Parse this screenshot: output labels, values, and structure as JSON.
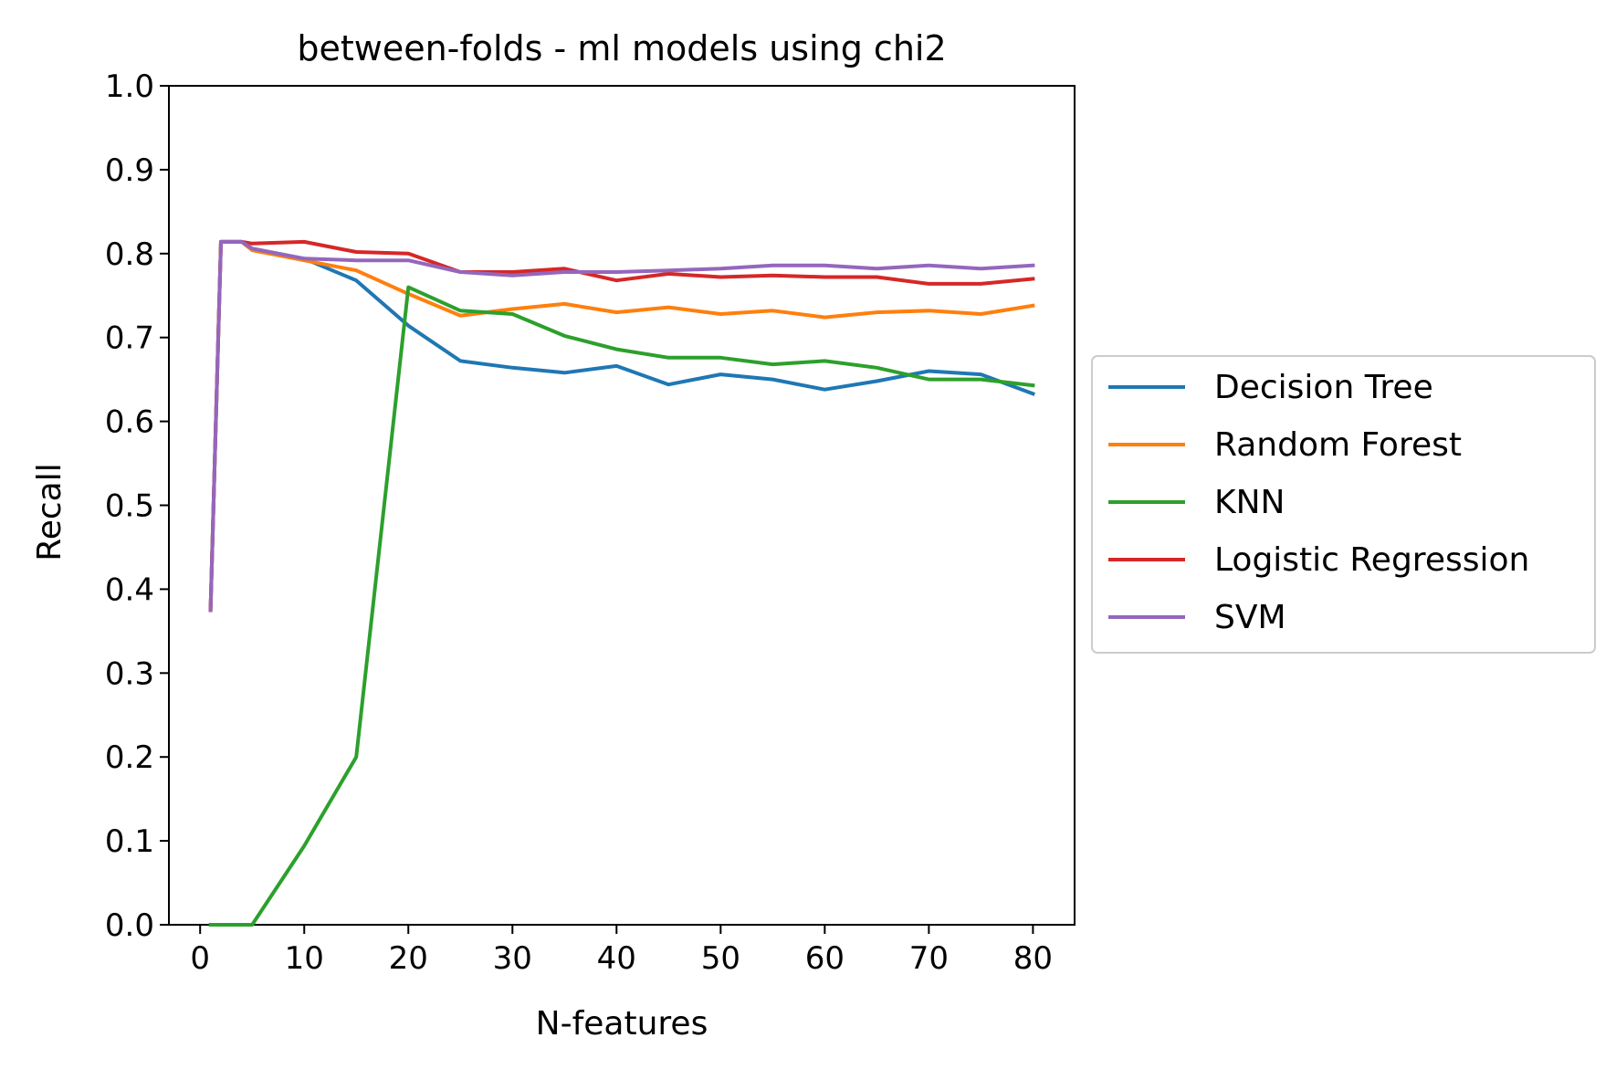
{
  "chart_data": {
    "type": "line",
    "title": "between-folds - ml models using chi2",
    "xlabel": "N-features",
    "ylabel": "Recall",
    "xlim": [
      -3.0,
      84.0
    ],
    "ylim": [
      0.0,
      1.0
    ],
    "xticks": [
      0,
      10,
      20,
      30,
      40,
      50,
      60,
      70,
      80
    ],
    "xtick_labels": [
      "0",
      "10",
      "20",
      "30",
      "40",
      "50",
      "60",
      "70",
      "80"
    ],
    "yticks": [
      0.0,
      0.1,
      0.2,
      0.3,
      0.4,
      0.5,
      0.6,
      0.7,
      0.8,
      0.9,
      1.0
    ],
    "ytick_labels": [
      "0.0",
      "0.1",
      "0.2",
      "0.3",
      "0.4",
      "0.5",
      "0.6",
      "0.7",
      "0.8",
      "0.9",
      "1.0"
    ],
    "grid": false,
    "legend_position": "outside-right",
    "x": [
      1,
      2,
      3,
      4,
      5,
      10,
      15,
      20,
      25,
      30,
      35,
      40,
      45,
      50,
      55,
      60,
      65,
      70,
      75,
      80
    ],
    "series": [
      {
        "name": "Decision Tree",
        "color": "#1f77b4",
        "values": [
          0.375,
          0.814,
          0.814,
          0.814,
          0.806,
          0.794,
          0.768,
          0.714,
          0.672,
          0.664,
          0.658,
          0.666,
          0.644,
          0.656,
          0.65,
          0.638,
          0.648,
          0.66,
          0.656,
          0.633
        ]
      },
      {
        "name": "Random Forest",
        "color": "#ff7f0e",
        "values": [
          0.375,
          0.814,
          0.814,
          0.814,
          0.804,
          0.792,
          0.78,
          0.752,
          0.726,
          0.734,
          0.74,
          0.73,
          0.736,
          0.728,
          0.732,
          0.724,
          0.73,
          0.732,
          0.728,
          0.738
        ]
      },
      {
        "name": "KNN",
        "color": "#2ca02c",
        "values": [
          0.0,
          0.0,
          0.0,
          0.0,
          0.0,
          0.094,
          0.2,
          0.76,
          0.732,
          0.728,
          0.702,
          0.686,
          0.676,
          0.676,
          0.668,
          0.672,
          0.664,
          0.65,
          0.65,
          0.643
        ]
      },
      {
        "name": "Logistic Regression",
        "color": "#d62728",
        "values": [
          0.375,
          0.814,
          0.814,
          0.814,
          0.812,
          0.814,
          0.802,
          0.8,
          0.778,
          0.778,
          0.782,
          0.768,
          0.776,
          0.772,
          0.774,
          0.772,
          0.772,
          0.764,
          0.764,
          0.77
        ]
      },
      {
        "name": "SVM",
        "color": "#9467bd",
        "values": [
          0.375,
          0.814,
          0.814,
          0.814,
          0.806,
          0.794,
          0.792,
          0.792,
          0.778,
          0.774,
          0.778,
          0.778,
          0.78,
          0.782,
          0.786,
          0.786,
          0.782,
          0.786,
          0.782,
          0.786
        ]
      }
    ]
  }
}
